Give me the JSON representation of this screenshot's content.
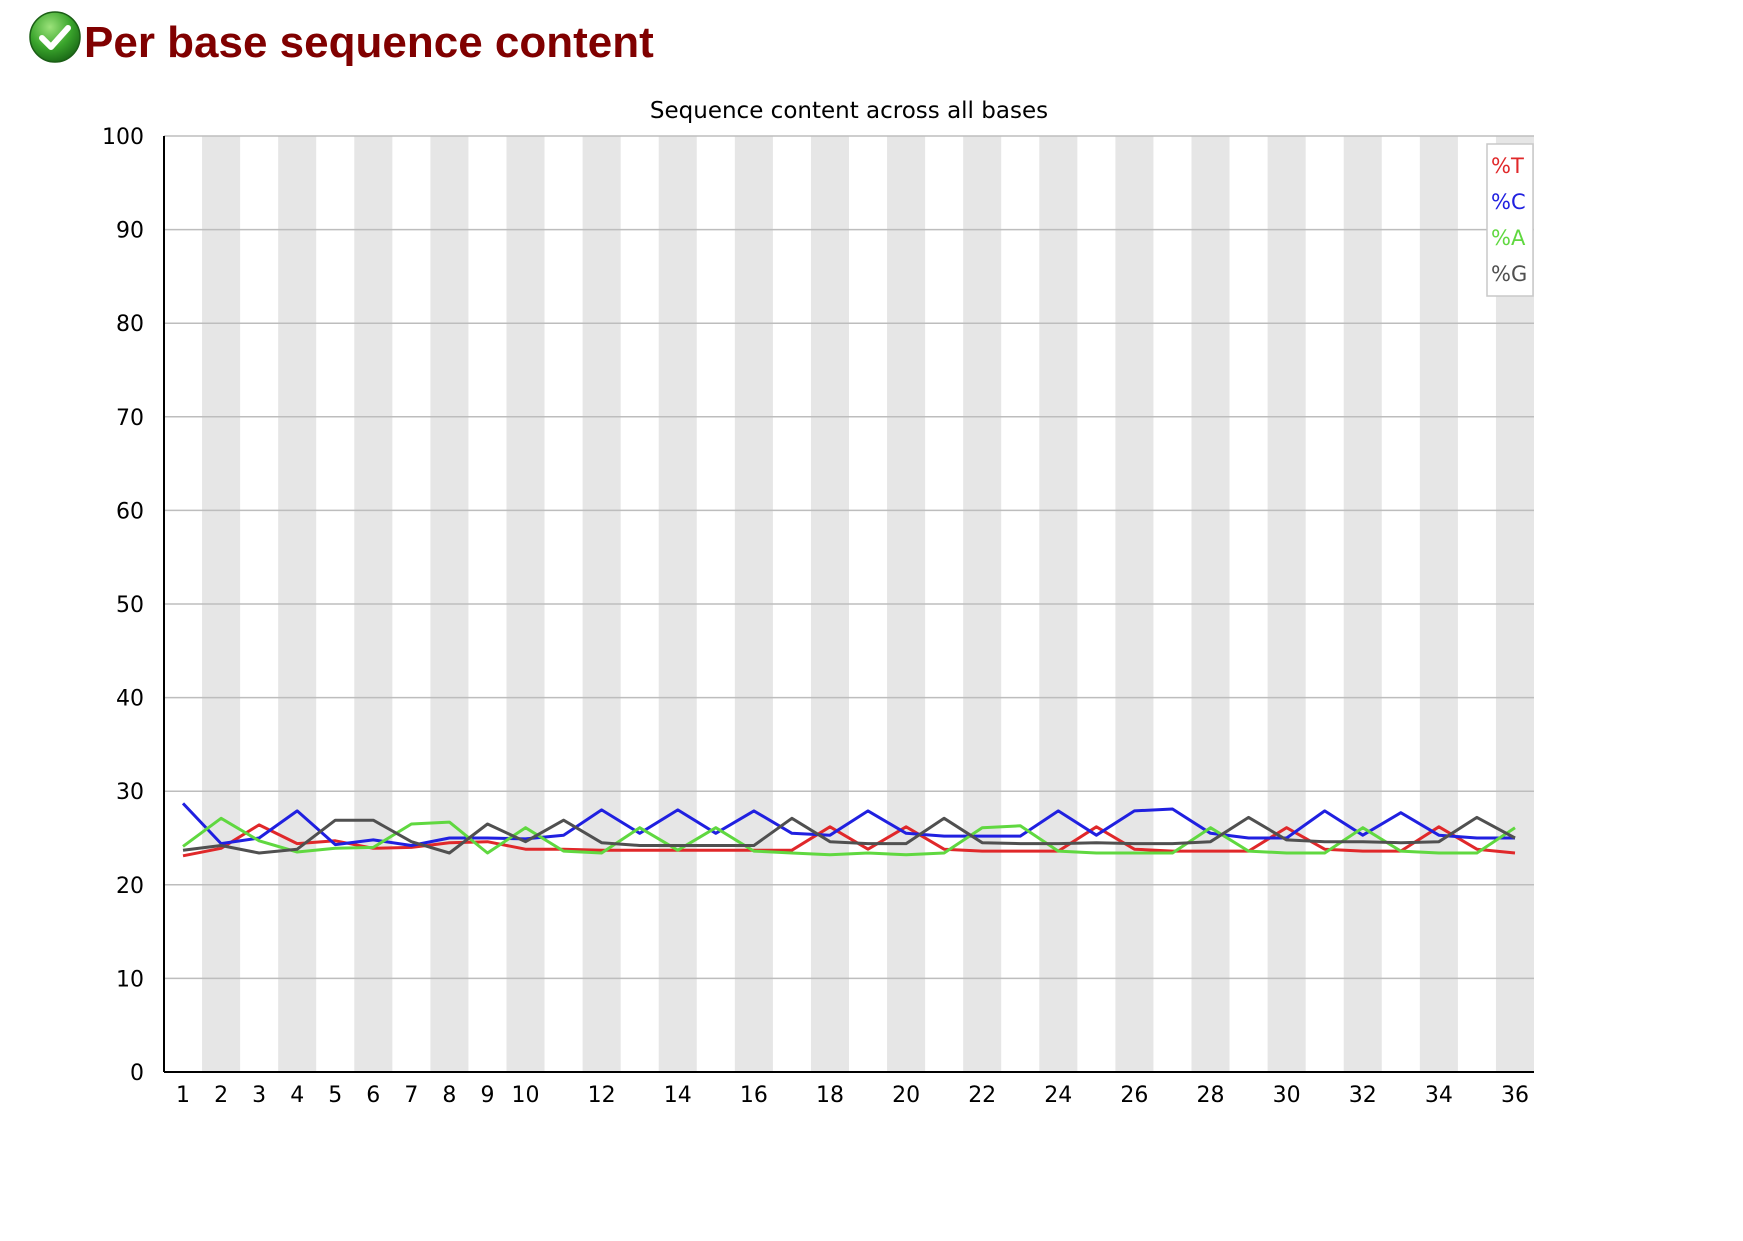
{
  "header": {
    "title": "Per base sequence content",
    "status_icon": "check-circle-icon",
    "status_color": "#2e9e2e"
  },
  "chart_data": {
    "type": "line",
    "title": "Sequence content across all bases",
    "xlabel": "",
    "ylabel": "",
    "ylim": [
      0,
      100
    ],
    "yticks": [
      "0",
      "10",
      "20",
      "30",
      "40",
      "50",
      "60",
      "70",
      "80",
      "90",
      "100"
    ],
    "xticks": [
      "1",
      "2",
      "3",
      "4",
      "5",
      "6",
      "7",
      "8",
      "9",
      "10",
      "12",
      "14",
      "16",
      "18",
      "20",
      "22",
      "24",
      "26",
      "28",
      "30",
      "32",
      "34",
      "36"
    ],
    "x": [
      1,
      2,
      3,
      4,
      5,
      6,
      7,
      8,
      9,
      10,
      11,
      12,
      13,
      14,
      15,
      16,
      17,
      18,
      19,
      20,
      21,
      22,
      23,
      24,
      25,
      26,
      27,
      28,
      29,
      30,
      31,
      32,
      33,
      34,
      35,
      36
    ],
    "grid": "horizontal",
    "alternating_bands": true,
    "legend_position": "top-right",
    "series": [
      {
        "name": "%T",
        "color": "#e0282a",
        "values": [
          23.1,
          23.9,
          26.4,
          24.4,
          24.7,
          23.9,
          24.0,
          24.5,
          24.6,
          23.8,
          23.8,
          23.7,
          23.7,
          23.7,
          23.7,
          23.7,
          23.7,
          26.2,
          23.8,
          26.2,
          23.8,
          23.6,
          23.6,
          23.6,
          26.2,
          23.8,
          23.6,
          23.6,
          23.6,
          26.1,
          23.8,
          23.6,
          23.6,
          26.2,
          23.8,
          23.4
        ]
      },
      {
        "name": "%C",
        "color": "#2020e0",
        "values": [
          28.7,
          24.4,
          25.0,
          27.9,
          24.3,
          24.8,
          24.2,
          25.0,
          25.0,
          24.9,
          25.3,
          28.0,
          25.5,
          28.0,
          25.5,
          27.9,
          25.5,
          25.3,
          27.9,
          25.5,
          25.2,
          25.2,
          25.2,
          27.9,
          25.3,
          27.9,
          28.1,
          25.5,
          25.0,
          25.0,
          27.9,
          25.3,
          27.7,
          25.3,
          25.0,
          25.0
        ]
      },
      {
        "name": "%A",
        "color": "#60d840",
        "values": [
          24.1,
          27.1,
          24.7,
          23.5,
          23.9,
          24.0,
          26.5,
          26.7,
          23.4,
          26.1,
          23.6,
          23.4,
          26.1,
          23.7,
          26.1,
          23.6,
          23.4,
          23.2,
          23.4,
          23.2,
          23.4,
          26.1,
          26.3,
          23.6,
          23.4,
          23.4,
          23.4,
          26.1,
          23.6,
          23.4,
          23.4,
          26.1,
          23.6,
          23.4,
          23.4,
          26.1
        ]
      },
      {
        "name": "%G",
        "color": "#505050",
        "values": [
          23.7,
          24.2,
          23.4,
          23.8,
          26.9,
          26.9,
          24.6,
          23.4,
          26.5,
          24.6,
          26.9,
          24.5,
          24.2,
          24.2,
          24.2,
          24.2,
          27.1,
          24.6,
          24.4,
          24.4,
          27.1,
          24.5,
          24.4,
          24.4,
          24.5,
          24.4,
          24.4,
          24.6,
          27.2,
          24.8,
          24.6,
          24.6,
          24.5,
          24.6,
          27.2,
          25.0
        ]
      }
    ]
  }
}
